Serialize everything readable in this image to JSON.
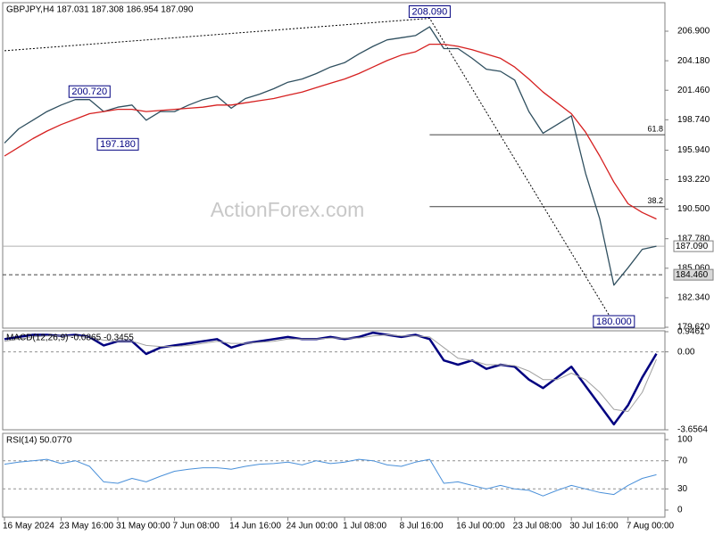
{
  "chart_data": [
    {
      "type": "line",
      "title": "GBPJPY,H4  187.031 187.308 186.954 187.090",
      "watermark": "ActionForex.com",
      "ylim": [
        179.54,
        209.53
      ],
      "yticks": [
        {
          "value": 179.62,
          "label": "179.620"
        },
        {
          "value": 182.34,
          "label": "182.340"
        },
        {
          "value": 185.06,
          "label": "185.060"
        },
        {
          "value": 187.78,
          "label": "187.780"
        },
        {
          "value": 190.5,
          "label": "190.500"
        },
        {
          "value": 193.22,
          "label": "193.220"
        },
        {
          "value": 195.94,
          "label": "195.940"
        },
        {
          "value": 198.74,
          "label": "198.740"
        },
        {
          "value": 201.46,
          "label": "201.460"
        },
        {
          "value": 204.18,
          "label": "204.180"
        },
        {
          "value": 206.9,
          "label": "206.900"
        }
      ],
      "grid": false,
      "series": [
        {
          "color": "#2f4f5f",
          "values": [
            196.6,
            197.9,
            198.7,
            199.5,
            200.1,
            200.6,
            200.6,
            199.5,
            199.9,
            200.1,
            198.7,
            199.5,
            199.5,
            200.1,
            200.6,
            200.9,
            199.8,
            200.7,
            201.1,
            201.6,
            202.2,
            202.5,
            203.0,
            203.6,
            204.0,
            204.8,
            205.5,
            206.1,
            206.3,
            206.5,
            207.3,
            205.3,
            205.3,
            204.4,
            203.4,
            203.2,
            202.4,
            199.5,
            197.5,
            198.3,
            199.1,
            193.8,
            189.6,
            183.5,
            185.1,
            186.8,
            187.09
          ]
        },
        {
          "color": "#d62020",
          "values": [
            195.4,
            196.2,
            197.0,
            197.7,
            198.3,
            198.8,
            199.3,
            199.5,
            199.7,
            199.7,
            199.5,
            199.6,
            199.7,
            199.8,
            199.9,
            200.1,
            200.1,
            200.3,
            200.5,
            200.7,
            201.0,
            201.3,
            201.7,
            202.1,
            202.5,
            203.0,
            203.6,
            204.2,
            204.7,
            205.0,
            205.7,
            205.7,
            205.5,
            205.2,
            204.8,
            204.4,
            203.6,
            202.5,
            201.3,
            200.3,
            199.3,
            197.6,
            195.4,
            193.0,
            191.0,
            190.2,
            189.6
          ]
        }
      ],
      "annotations": [
        {
          "label": "208.090",
          "value": 208.09,
          "index": 30
        },
        {
          "label": "200.720",
          "value": 200.72,
          "index": 6
        },
        {
          "label": "197.180",
          "value": 197.18,
          "index": 8
        },
        {
          "label": "180.000",
          "value": 180.0,
          "index": 43
        }
      ],
      "trendline": {
        "indices": [
          0,
          30,
          43
        ],
        "values": [
          205.1,
          208.09,
          180.0
        ]
      },
      "fib_levels": [
        {
          "label": "61.8",
          "value": 197.36
        },
        {
          "label": "38.2",
          "value": 190.73
        }
      ],
      "price_lines": [
        {
          "label": "187.090",
          "value": 187.09,
          "style": "solid"
        },
        {
          "label": "184.460",
          "value": 184.46,
          "style": "dashed"
        }
      ]
    },
    {
      "type": "line",
      "title": "MACD(12,26,9) -0.0865 -0.3455",
      "ylim": [
        -3.6564,
        0.9461
      ],
      "yticks": [
        -3.6564,
        {
          "value": 0,
          "label": "0.00"
        },
        0.9461
      ],
      "grid": "dashed",
      "series": [
        {
          "color": "#000080",
          "width": 2.5,
          "values": [
            0.6,
            0.7,
            0.8,
            0.8,
            0.75,
            0.8,
            0.7,
            0.3,
            0.5,
            0.5,
            -0.1,
            0.2,
            0.3,
            0.4,
            0.5,
            0.6,
            0.2,
            0.4,
            0.5,
            0.6,
            0.7,
            0.6,
            0.6,
            0.7,
            0.6,
            0.7,
            0.9,
            0.8,
            0.7,
            0.8,
            0.6,
            -0.4,
            -0.6,
            -0.4,
            -0.8,
            -0.6,
            -0.7,
            -1.3,
            -1.7,
            -1.2,
            -0.7,
            -1.6,
            -2.5,
            -3.4,
            -2.5,
            -1.2,
            -0.0865
          ]
        },
        {
          "color": "#a0a0a0",
          "width": 1,
          "values": [
            0.5,
            0.6,
            0.7,
            0.75,
            0.75,
            0.75,
            0.7,
            0.55,
            0.5,
            0.5,
            0.3,
            0.25,
            0.25,
            0.3,
            0.4,
            0.5,
            0.4,
            0.4,
            0.45,
            0.5,
            0.6,
            0.6,
            0.6,
            0.65,
            0.65,
            0.65,
            0.75,
            0.8,
            0.75,
            0.75,
            0.7,
            0.2,
            -0.3,
            -0.4,
            -0.6,
            -0.6,
            -0.65,
            -0.9,
            -1.3,
            -1.3,
            -1.0,
            -1.3,
            -1.9,
            -2.7,
            -2.8,
            -1.9,
            -0.3455
          ]
        }
      ]
    },
    {
      "type": "line",
      "title": "RSI(14) 50.0770",
      "ylim": [
        0,
        100
      ],
      "yticks": [
        0,
        30,
        70,
        100
      ],
      "grid": "dashed",
      "categories": [
        "16 May 2024",
        null,
        null,
        null,
        "23 May 16:00",
        null,
        null,
        null,
        "31 May 00:00",
        null,
        null,
        null,
        "7 Jun 08:00",
        null,
        null,
        null,
        "14 Jun 16:00",
        null,
        null,
        null,
        "24 Jun 00:00",
        null,
        null,
        null,
        "1 Jul 08:00",
        null,
        null,
        null,
        "8 Jul 16:00",
        null,
        null,
        null,
        "16 Jul 00:00",
        null,
        null,
        null,
        "23 Jul 08:00",
        null,
        null,
        null,
        "30 Jul 16:00",
        null,
        null,
        null,
        "7 Aug 00:00",
        null,
        null
      ],
      "series": [
        {
          "color": "#4a90d9",
          "width": 1,
          "values": [
            65,
            68,
            70,
            72,
            66,
            70,
            62,
            40,
            38,
            45,
            40,
            48,
            55,
            58,
            60,
            60,
            58,
            62,
            65,
            66,
            68,
            64,
            70,
            66,
            68,
            72,
            70,
            64,
            62,
            68,
            72,
            38,
            40,
            35,
            30,
            35,
            30,
            28,
            20,
            28,
            35,
            30,
            25,
            22,
            35,
            45,
            50.077
          ]
        }
      ]
    }
  ]
}
